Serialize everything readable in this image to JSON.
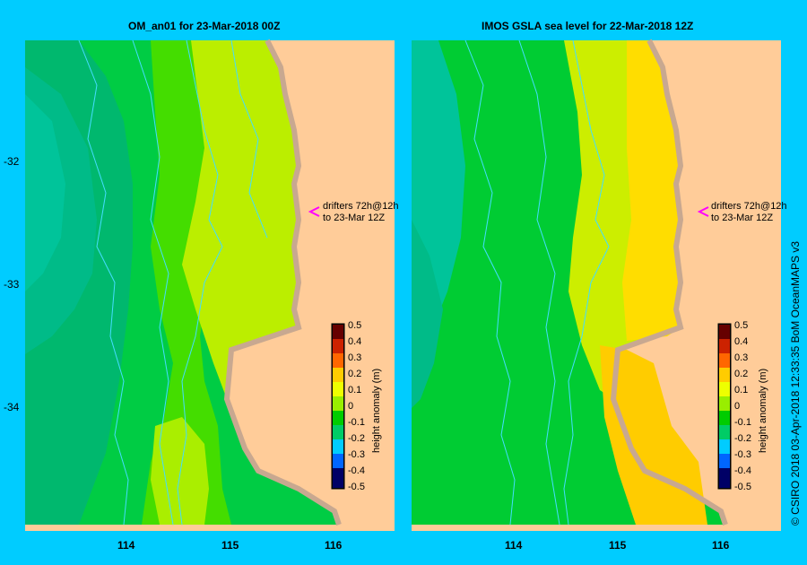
{
  "panels": [
    {
      "title": "OM_an01  for 23-Mar-2018 00Z",
      "annotation_line1": "drifters 72h@12h",
      "annotation_line2": "to 23-Mar 12Z",
      "colorbar_label": "height anomaly (m)"
    },
    {
      "title": "IMOS  GSLA sea level   for 22-Mar-2018 12Z",
      "annotation_line1": "drifters 72h@12h",
      "annotation_line2": "to 23-Mar 12Z",
      "colorbar_label": "height anomaly (m)"
    }
  ],
  "y_ticks": [
    "-32",
    "-33",
    "-34"
  ],
  "x_ticks": [
    "114",
    "115",
    "116"
  ],
  "colorbar_ticks": [
    "0.5",
    "0.4",
    "0.3",
    "0.2",
    "0.1",
    "0",
    "-0.1",
    "-0.2",
    "-0.3",
    "-0.4",
    "-0.5"
  ],
  "colorbar_colors": [
    "#000066",
    "#0000cc",
    "#0066ff",
    "#00ccff",
    "#00cc66",
    "#00cc00",
    "#99ee00",
    "#eeff00",
    "#ffcc00",
    "#ff6600",
    "#cc2200",
    "#660000"
  ],
  "land_color": "#ffcc99",
  "coast_color": "#c8a890",
  "background_color": "#00ccff",
  "credit": "© CSIRO 2018   03-Apr-2018 12:33:35 BoM OceanMAPS v3"
}
